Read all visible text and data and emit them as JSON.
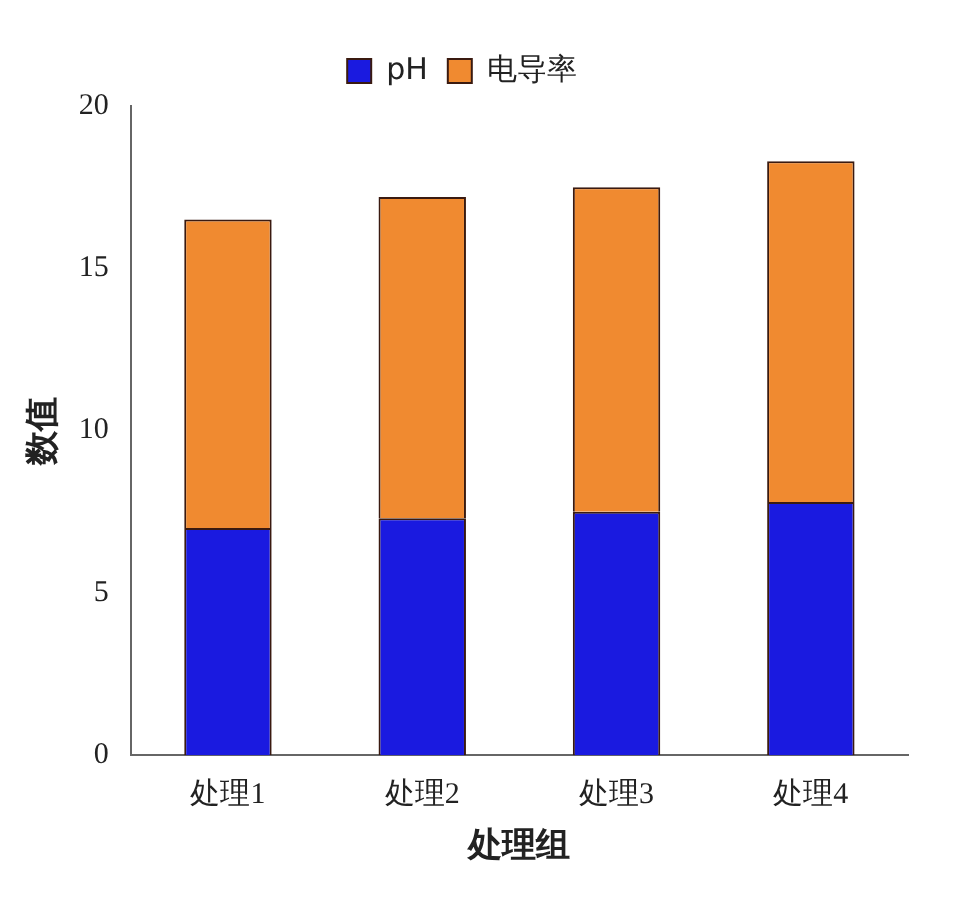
{
  "chart_data": {
    "type": "bar",
    "stacked": true,
    "xlabel": "处理组",
    "ylabel": "数值",
    "categories": [
      "处理1",
      "处理2",
      "处理3",
      "处理4"
    ],
    "series": [
      {
        "name": "pH",
        "color": "#1a1ae0",
        "values": [
          7.0,
          7.3,
          7.5,
          7.8
        ]
      },
      {
        "name": "电导率",
        "color": "#f08a30",
        "values": [
          9.5,
          9.9,
          10.0,
          10.5
        ]
      }
    ],
    "ylim": [
      0,
      20
    ],
    "yticks": [
      0,
      5,
      10,
      15,
      20
    ],
    "grid": false,
    "legend": "top"
  }
}
